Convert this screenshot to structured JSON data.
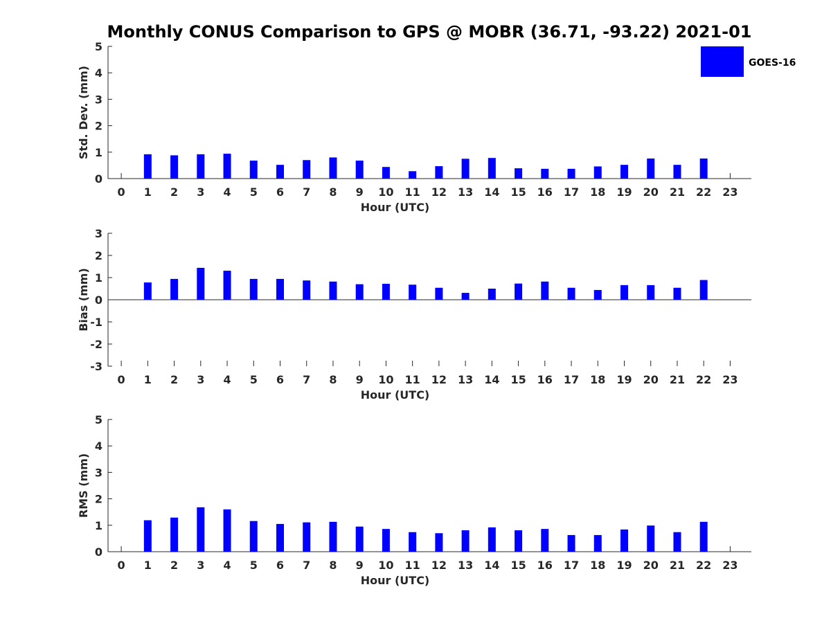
{
  "figure": {
    "title": "Monthly CONUS Comparison to GPS @ MOBR (36.71, -93.22) 2021-01"
  },
  "legend": {
    "label": "GOES-16",
    "color": "#0000ff",
    "placement": "top-right"
  },
  "chart_data": [
    {
      "type": "bar",
      "xlabel": "Hour (UTC)",
      "ylabel": "Std. Dev. (mm)",
      "x": [
        0,
        1,
        2,
        3,
        4,
        5,
        6,
        7,
        8,
        9,
        10,
        11,
        12,
        13,
        14,
        15,
        16,
        17,
        18,
        19,
        20,
        21,
        22,
        23
      ],
      "xlim": [
        -0.5,
        23.8
      ],
      "ylim": [
        0,
        5
      ],
      "yticks": [
        0,
        1,
        2,
        3,
        4,
        5
      ],
      "series": [
        {
          "name": "GOES-16",
          "color": "#0000ff",
          "values": [
            null,
            0.92,
            0.88,
            0.92,
            0.94,
            0.68,
            0.52,
            0.7,
            0.8,
            0.68,
            0.44,
            0.28,
            0.47,
            0.75,
            0.78,
            0.39,
            0.37,
            0.37,
            0.46,
            0.52,
            0.76,
            0.52,
            0.76,
            null
          ]
        }
      ]
    },
    {
      "type": "bar",
      "xlabel": "Hour (UTC)",
      "ylabel": "Bias (mm)",
      "x": [
        0,
        1,
        2,
        3,
        4,
        5,
        6,
        7,
        8,
        9,
        10,
        11,
        12,
        13,
        14,
        15,
        16,
        17,
        18,
        19,
        20,
        21,
        22,
        23
      ],
      "xlim": [
        -0.5,
        23.8
      ],
      "ylim": [
        -3,
        3
      ],
      "yticks": [
        -3,
        -2,
        -1,
        0,
        1,
        2,
        3
      ],
      "series": [
        {
          "name": "GOES-16",
          "color": "#0000ff",
          "values": [
            null,
            0.78,
            0.94,
            1.44,
            1.31,
            0.94,
            0.94,
            0.87,
            0.82,
            0.7,
            0.72,
            0.68,
            0.54,
            0.31,
            0.5,
            0.73,
            0.82,
            0.54,
            0.44,
            0.66,
            0.66,
            0.54,
            0.89,
            null
          ]
        }
      ]
    },
    {
      "type": "bar",
      "xlabel": "Hour (UTC)",
      "ylabel": "RMS (mm)",
      "x": [
        0,
        1,
        2,
        3,
        4,
        5,
        6,
        7,
        8,
        9,
        10,
        11,
        12,
        13,
        14,
        15,
        16,
        17,
        18,
        19,
        20,
        21,
        22,
        23
      ],
      "xlim": [
        -0.5,
        23.8
      ],
      "ylim": [
        0,
        5
      ],
      "yticks": [
        0,
        1,
        2,
        3,
        4,
        5
      ],
      "series": [
        {
          "name": "GOES-16",
          "color": "#0000ff",
          "values": [
            null,
            1.19,
            1.29,
            1.68,
            1.6,
            1.16,
            1.05,
            1.11,
            1.13,
            0.95,
            0.86,
            0.74,
            0.7,
            0.81,
            0.92,
            0.81,
            0.86,
            0.63,
            0.63,
            0.84,
            0.99,
            0.74,
            1.13,
            null
          ]
        }
      ]
    }
  ]
}
